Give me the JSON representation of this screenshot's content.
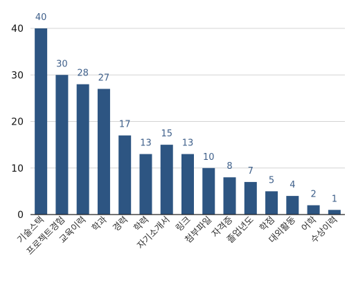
{
  "chart_data": {
    "type": "bar",
    "title": "",
    "xlabel": "",
    "ylabel": "",
    "categories": [
      "기술스택",
      "프로젝트경험",
      "교육이력",
      "학과",
      "경력",
      "학력",
      "자기소개서",
      "링크",
      "첨부파일",
      "자격증",
      "졸업년도",
      "학점",
      "대외활동",
      "어학",
      "수상이력"
    ],
    "values": [
      40,
      30,
      28,
      27,
      17,
      13,
      15,
      13,
      10,
      8,
      7,
      5,
      4,
      2,
      1
    ],
    "data_labels": [
      "40",
      "30",
      "28",
      "27",
      "17",
      "13",
      "15",
      "13",
      "10",
      "8",
      "7",
      "5",
      "4",
      "2",
      "1"
    ],
    "yticks": [
      0,
      10,
      20,
      30,
      40
    ],
    "ytick_labels": [
      "0",
      "10",
      "20",
      "30",
      "40"
    ],
    "ylim": [
      0,
      40
    ],
    "grid": true,
    "legend": "none",
    "bar_color": "#2d5582",
    "label_color": "#3e5f8a"
  }
}
